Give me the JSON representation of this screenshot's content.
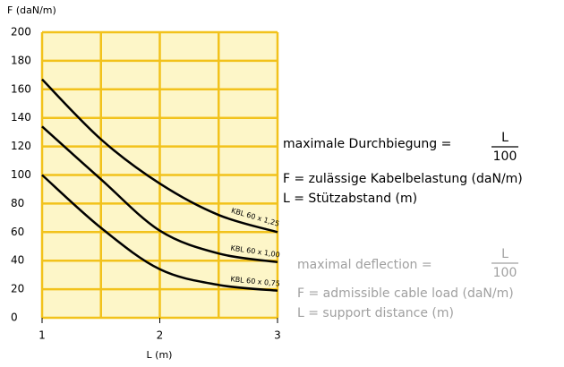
{
  "chart_data": {
    "type": "line",
    "ylabel": "F (daN/m)",
    "xlabel": "L (m)",
    "x": [
      1,
      1.5,
      2,
      2.5,
      3
    ],
    "series": [
      {
        "name": "KBL 60 x 1,25",
        "color": "#000000",
        "values": [
          167,
          125,
          94,
          72,
          60
        ]
      },
      {
        "name": "KBL 60 x 1,00",
        "color": "#000000",
        "values": [
          134,
          97,
          61,
          45,
          39
        ]
      },
      {
        "name": "KBL 60 x 0,75",
        "color": "#000000",
        "values": [
          100,
          63,
          34,
          23,
          19
        ]
      }
    ],
    "xlim": [
      1,
      3
    ],
    "ylim": [
      0,
      200
    ],
    "xticks": [
      1,
      2,
      3
    ],
    "yticks": [
      0,
      20,
      40,
      60,
      80,
      100,
      120,
      140,
      160,
      180,
      200
    ],
    "xgrid": [
      1,
      1.5,
      2,
      2.5,
      3
    ],
    "grid": true,
    "grid_color": "#f2c21b",
    "background": "#fdf6c8"
  },
  "formula_de": {
    "lhs": "maximale Durchbiegung =",
    "numerator": "L",
    "denominator": "100",
    "lines": [
      "F = zulässige Kabelbelastung (daN/m)",
      "L = Stützabstand (m)"
    ]
  },
  "formula_en": {
    "lhs": "maximal deflection =",
    "numerator": "L",
    "denominator": "100",
    "lines": [
      "F = admissible cable load (daN/m)",
      "L = support distance (m)"
    ]
  }
}
